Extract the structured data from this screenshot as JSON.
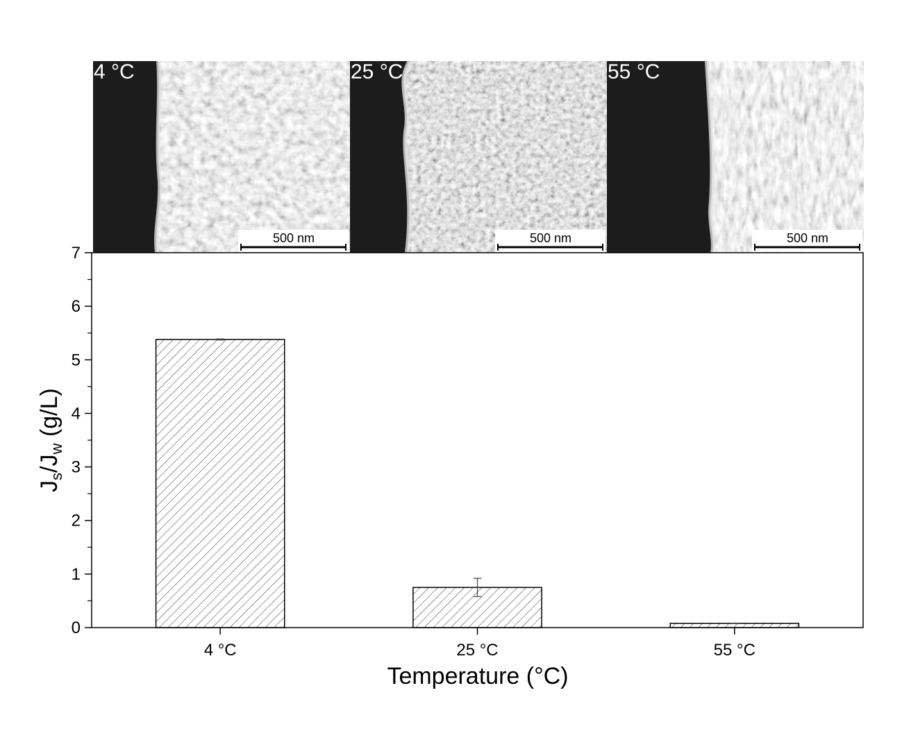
{
  "micrographs": [
    {
      "label": "4 °C",
      "scale_bar": "500 nm",
      "tone": "grainy"
    },
    {
      "label": "25 °C",
      "scale_bar": "500 nm",
      "tone": "porous"
    },
    {
      "label": "55 °C",
      "scale_bar": "500 nm",
      "tone": "fibrous"
    }
  ],
  "chart_data": {
    "type": "bar",
    "categories": [
      "4 °C",
      "25 °C",
      "55 °C"
    ],
    "values": [
      5.38,
      0.75,
      0.08
    ],
    "errors": [
      0.01,
      0.17,
      0.005
    ],
    "xlabel": "Temperature (°C)",
    "ylabel_parts": {
      "j": "J",
      "s": "s",
      "sep": "/J",
      "w": "w",
      "unit": " (g/L)"
    },
    "ylim": [
      0,
      7
    ],
    "yticks": [
      0,
      1,
      2,
      3,
      4,
      5,
      6,
      7
    ],
    "bar_fill": "hatched",
    "grid": false
  }
}
